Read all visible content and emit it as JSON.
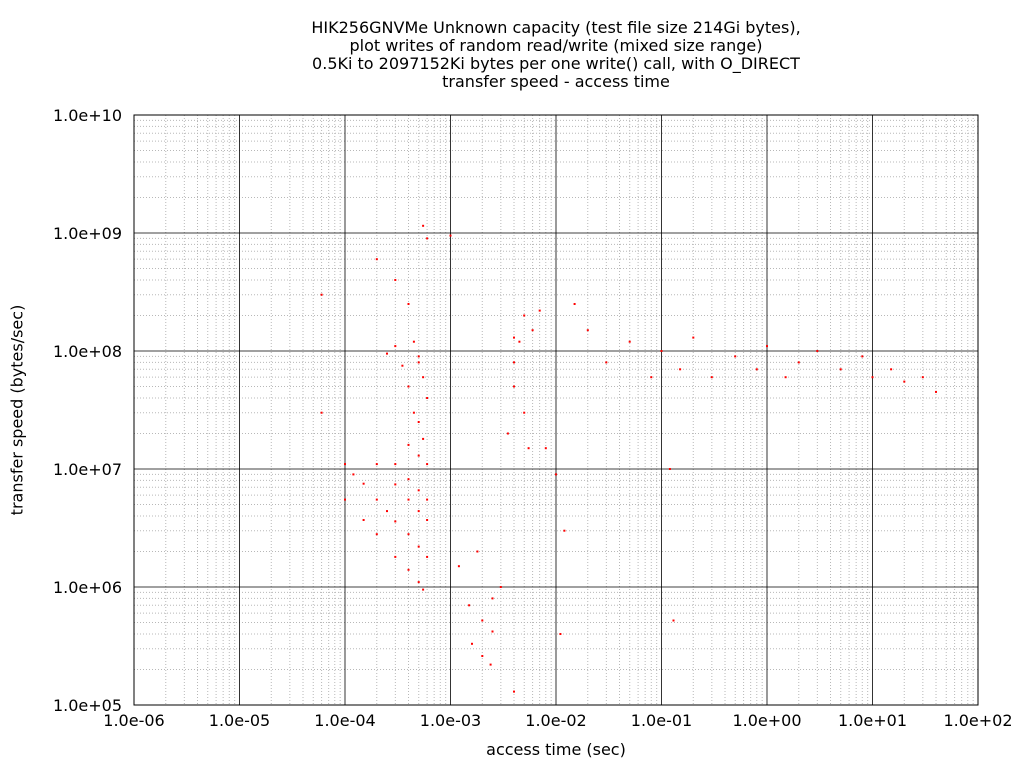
{
  "chart_data": {
    "type": "scatter",
    "title_lines": [
      "HIK256GNVMe Unknown capacity (test file size 214Gi bytes),",
      "plot writes of random read/write (mixed size range)",
      "0.5Ki to 2097152Ki bytes per one write() call, with O_DIRECT",
      "transfer speed - access time"
    ],
    "xlabel": "access time (sec)",
    "ylabel": "transfer speed (bytes/sec)",
    "x_scale": "log",
    "y_scale": "log",
    "xlim": [
      1e-06,
      100
    ],
    "ylim": [
      100000.0,
      10000000000.0
    ],
    "x_ticks": [
      {
        "value": 1e-06,
        "label": "1.0e-06"
      },
      {
        "value": 1e-05,
        "label": "1.0e-05"
      },
      {
        "value": 0.0001,
        "label": "1.0e-04"
      },
      {
        "value": 0.001,
        "label": "1.0e-03"
      },
      {
        "value": 0.01,
        "label": "1.0e-02"
      },
      {
        "value": 0.1,
        "label": "1.0e-01"
      },
      {
        "value": 1,
        "label": "1.0e+00"
      },
      {
        "value": 10,
        "label": "1.0e+01"
      },
      {
        "value": 100,
        "label": "1.0e+02"
      }
    ],
    "y_ticks": [
      {
        "value": 100000.0,
        "label": "1.0e+05"
      },
      {
        "value": 1000000.0,
        "label": "1.0e+06"
      },
      {
        "value": 10000000.0,
        "label": "1.0e+07"
      },
      {
        "value": 100000000.0,
        "label": "1.0e+08"
      },
      {
        "value": 1000000000.0,
        "label": "1.0e+09"
      },
      {
        "value": 10000000000.0,
        "label": "1.0e+10"
      }
    ],
    "grid": true,
    "legend": "none",
    "point_color": "#ff0000",
    "series": [
      {
        "points": [
          [
            0.0001,
            11000000.0
          ],
          [
            0.00012,
            9000000.0
          ],
          [
            0.00015,
            7500000.0
          ],
          [
            0.0002,
            5500000.0
          ],
          [
            0.00025,
            4400000.0
          ],
          [
            0.0003,
            3600000.0
          ],
          [
            0.0004,
            2800000.0
          ],
          [
            0.0005,
            2200000.0
          ],
          [
            0.0006,
            1800000.0
          ],
          [
            0.0001,
            5500000.0
          ],
          [
            0.00015,
            3700000.0
          ],
          [
            0.0002,
            2800000.0
          ],
          [
            0.0003,
            1800000.0
          ],
          [
            0.0004,
            1400000.0
          ],
          [
            0.0005,
            1100000.0
          ],
          [
            0.00055,
            950000.0
          ],
          [
            0.0002,
            11000000.0
          ],
          [
            0.0003,
            7400000.0
          ],
          [
            0.0004,
            5500000.0
          ],
          [
            0.0005,
            4400000.0
          ],
          [
            0.0006,
            3700000.0
          ],
          [
            0.0003,
            11000000.0
          ],
          [
            0.0004,
            8200000.0
          ],
          [
            0.0005,
            6600000.0
          ],
          [
            0.0006,
            5500000.0
          ],
          [
            0.0004,
            16000000.0
          ],
          [
            0.0005,
            13000000.0
          ],
          [
            0.0006,
            11000000.0
          ],
          [
            0.0015,
            700000.0
          ],
          [
            0.002,
            520000.0
          ],
          [
            0.0025,
            420000.0
          ],
          [
            0.0016,
            330000.0
          ],
          [
            0.002,
            260000.0
          ],
          [
            0.0024,
            220000.0
          ],
          [
            0.00035,
            75000000.0
          ],
          [
            0.0004,
            50000000.0
          ],
          [
            0.00045,
            30000000.0
          ],
          [
            0.0005,
            80000000.0
          ],
          [
            0.00055,
            60000000.0
          ],
          [
            0.0006,
            40000000.0
          ],
          [
            0.0005,
            25000000.0
          ],
          [
            0.00055,
            18000000.0
          ],
          [
            0.00045,
            120000000.0
          ],
          [
            0.0005,
            90000000.0
          ],
          [
            0.0003,
            110000000.0
          ],
          [
            0.00025,
            95000000.0
          ],
          [
            0.0002,
            600000000.0
          ],
          [
            0.0003,
            400000000.0
          ],
          [
            0.0004,
            250000000.0
          ],
          [
            0.00055,
            1150000000.0
          ],
          [
            0.0006,
            900000000.0
          ],
          [
            0.001,
            950000000.0
          ],
          [
            0.004,
            50000000.0
          ],
          [
            0.005,
            30000000.0
          ],
          [
            0.0035,
            20000000.0
          ],
          [
            0.0045,
            120000000.0
          ],
          [
            0.005,
            200000000.0
          ],
          [
            0.006,
            150000000.0
          ],
          [
            0.007,
            220000000.0
          ],
          [
            0.004,
            80000000.0
          ],
          [
            0.0055,
            15000000.0
          ],
          [
            0.004,
            130000000.0
          ],
          [
            0.008,
            15000000.0
          ],
          [
            0.01,
            9000000.0
          ],
          [
            0.012,
            3000000.0
          ],
          [
            0.015,
            250000000.0
          ],
          [
            0.02,
            150000000.0
          ],
          [
            0.03,
            80000000.0
          ],
          [
            0.05,
            120000000.0
          ],
          [
            0.08,
            60000000.0
          ],
          [
            0.1,
            100000000.0
          ],
          [
            0.15,
            70000000.0
          ],
          [
            0.2,
            130000000.0
          ],
          [
            0.3,
            60000000.0
          ],
          [
            0.5,
            90000000.0
          ],
          [
            0.8,
            70000000.0
          ],
          [
            1,
            110000000.0
          ],
          [
            1.5,
            60000000.0
          ],
          [
            2,
            80000000.0
          ],
          [
            3,
            100000000.0
          ],
          [
            5,
            70000000.0
          ],
          [
            8,
            90000000.0
          ],
          [
            10,
            60000000.0
          ],
          [
            15,
            70000000.0
          ],
          [
            20,
            55000000.0
          ],
          [
            30,
            60000000.0
          ],
          [
            40,
            45000000.0
          ],
          [
            0.0012,
            1500000.0
          ],
          [
            0.0018,
            2000000.0
          ],
          [
            0.0025,
            800000.0
          ],
          [
            0.003,
            1000000.0
          ],
          [
            0.011,
            400000.0
          ],
          [
            0.13,
            520000.0
          ],
          [
            0.12,
            10000000.0
          ],
          [
            0.004,
            130000.0
          ],
          [
            6e-05,
            30000000.0
          ],
          [
            6e-05,
            300000000.0
          ]
        ]
      }
    ]
  }
}
